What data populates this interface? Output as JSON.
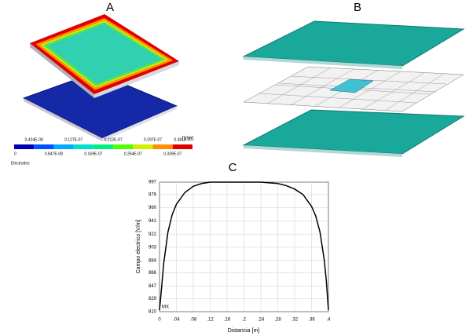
{
  "panels": [
    "A",
    "B"
  ],
  "colorbar": {
    "unit": "[V/m]",
    "caption": "Electrodes",
    "labels": [
      "0",
      "0.424E-08",
      "0.847E-08",
      "0.127E-07",
      "0.169E-07",
      "0.212E-07",
      "0.254E-07",
      "0.297E-07",
      "0.339E-07",
      "0.381E-07"
    ],
    "colors": [
      "#0000b4",
      "#0050ff",
      "#00aaff",
      "#00e0d0",
      "#00f080",
      "#50ff00",
      "#d0f000",
      "#ff9000",
      "#e00000"
    ]
  },
  "chart_data": {
    "type": "line",
    "title": "C",
    "x_label": "Distancia [m]",
    "y_label": "Campo electrico [V/m]",
    "annotation": "MX",
    "x": [
      0,
      0.005,
      0.01,
      0.02,
      0.03,
      0.04,
      0.06,
      0.08,
      0.1,
      0.12,
      0.16,
      0.2,
      0.24,
      0.28,
      0.3,
      0.32,
      0.34,
      0.36,
      0.37,
      0.38,
      0.39,
      0.395,
      0.4
    ],
    "series": [
      {
        "color": "#000000",
        "values": [
          812,
          845,
          880,
          925,
          950,
          965,
          982,
          991,
          995,
          997,
          997,
          997,
          997,
          995,
          992,
          987,
          979,
          962,
          948,
          925,
          885,
          855,
          812
        ]
      }
    ],
    "xlim": [
      0,
      0.4
    ],
    "ylim": [
      810,
      997
    ],
    "xticks": [
      0,
      {
        "value": 0.04,
        "label": ".04"
      },
      {
        "value": 0.08,
        "label": ".08"
      },
      {
        "value": 0.12,
        "label": ".12"
      },
      {
        "value": 0.16,
        "label": ".16"
      },
      {
        "value": 0.2,
        "label": ".2"
      },
      {
        "value": 0.24,
        "label": ".24"
      },
      {
        "value": 0.28,
        "label": ".28"
      },
      {
        "value": 0.32,
        "label": ".32"
      },
      {
        "value": 0.36,
        "label": ".36"
      },
      {
        "value": 0.4,
        "label": ".4"
      }
    ],
    "yticks": [
      810,
      829,
      847,
      866,
      884,
      903,
      922,
      941,
      960,
      979,
      997
    ],
    "grid": true
  }
}
